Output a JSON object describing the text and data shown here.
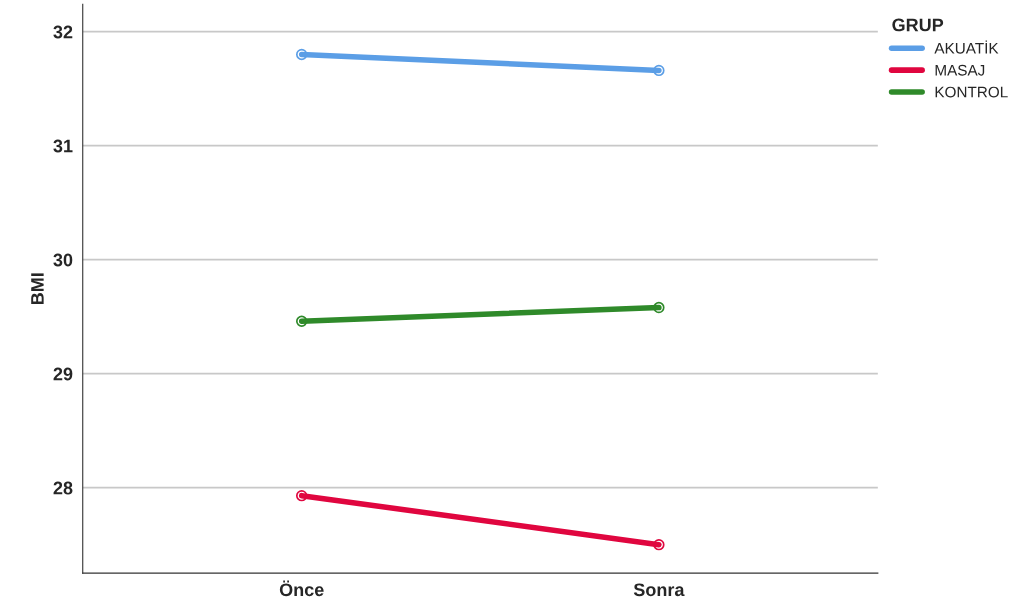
{
  "chart_data": {
    "type": "line",
    "ylabel": "BMI",
    "legend_title": "GRUP",
    "categories": [
      "Önce",
      "Sonra"
    ],
    "series": [
      {
        "name": "AKUATİK",
        "color": "#5b9ee6",
        "values": [
          31.8,
          31.66
        ]
      },
      {
        "name": "MASAJ",
        "color": "#e0063f",
        "values": [
          27.93,
          27.5
        ]
      },
      {
        "name": "KONTROL",
        "color": "#2f8a2a",
        "values": [
          29.46,
          29.58
        ]
      }
    ],
    "ylim": [
      27.25,
      32.24
    ],
    "yticks": [
      28,
      29,
      30,
      31,
      32
    ],
    "grid": "y",
    "legend": "top right",
    "marker": "circle",
    "line_style": "solid"
  }
}
